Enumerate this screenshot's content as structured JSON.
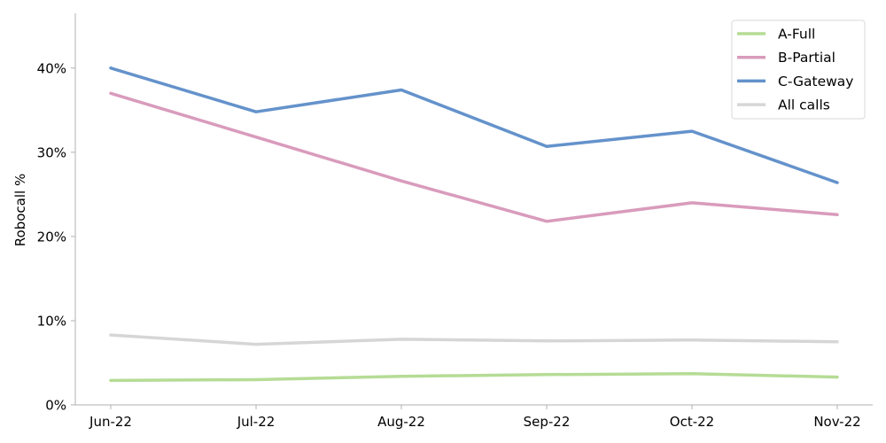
{
  "chart_data": {
    "type": "line",
    "title": "",
    "xlabel": "",
    "ylabel": "Robocall %",
    "categories": [
      "Jun-22",
      "Jul-22",
      "Aug-22",
      "Sep-22",
      "Oct-22",
      "Nov-22"
    ],
    "ylim": [
      0,
      46.5
    ],
    "yticks": [
      0,
      10,
      20,
      30,
      40
    ],
    "ytick_labels": [
      "0%",
      "10%",
      "20%",
      "30%",
      "40%"
    ],
    "grid": false,
    "legend_position": "top-right",
    "series": [
      {
        "name": "A-Full",
        "color": "#b5dc95",
        "values": [
          2.9,
          3.0,
          3.4,
          3.6,
          3.7,
          3.3
        ]
      },
      {
        "name": "B-Partial",
        "color": "#d99bbc",
        "values": [
          37.0,
          31.8,
          26.6,
          21.8,
          24.0,
          22.6
        ]
      },
      {
        "name": "C-Gateway",
        "color": "#6492cb",
        "values": [
          40.0,
          34.8,
          37.4,
          30.7,
          32.5,
          26.4
        ]
      },
      {
        "name": "All calls",
        "color": "#d6d6d6",
        "values": [
          8.3,
          7.2,
          7.8,
          7.6,
          7.7,
          7.5
        ]
      }
    ]
  }
}
